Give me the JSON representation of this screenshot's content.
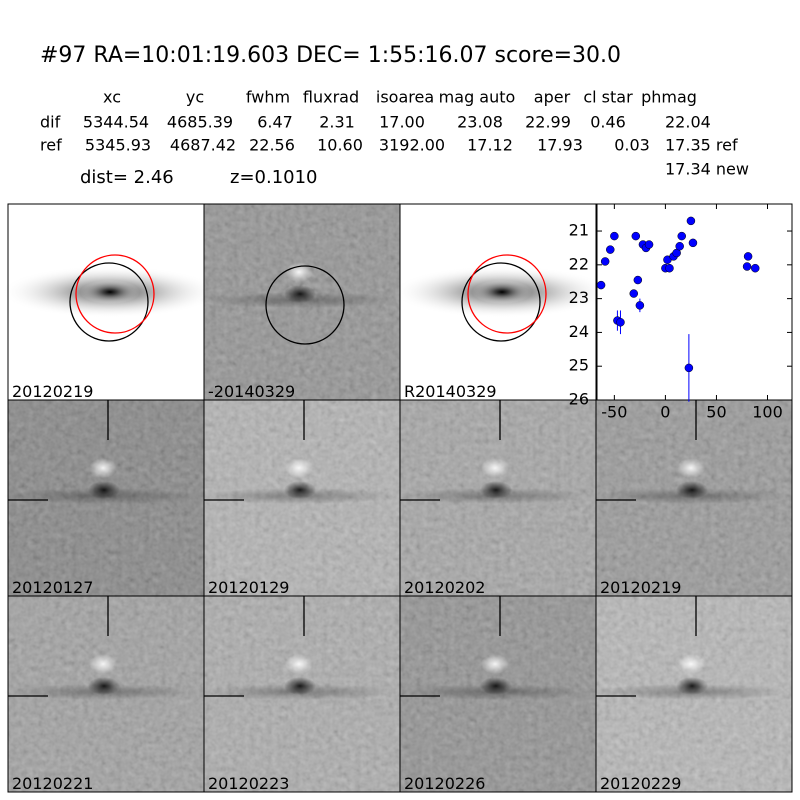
{
  "header": {
    "title": "#97   RA=10:01:19.603 DEC= 1:55:16.07      score=30.0"
  },
  "table": {
    "columns": [
      "xc",
      "yc",
      "fwhm",
      "fluxrad",
      "isoarea",
      "mag auto",
      "aper",
      "cl star",
      "phmag"
    ],
    "rows": [
      {
        "label": "dif",
        "values": [
          "5344.54",
          "4685.39",
          "6.47",
          "2.31",
          "17.00",
          "23.08",
          "22.99",
          "0.46",
          "22.04"
        ]
      },
      {
        "label": "ref",
        "values": [
          "5345.93",
          "4687.42",
          "22.56",
          "10.60",
          "3192.00",
          "17.12",
          "17.93",
          "0.03",
          "17.35 ref"
        ]
      }
    ],
    "extra": "17.34 new",
    "dist": "dist=  2.46",
    "z": "z=0.1010"
  },
  "panels": [
    {
      "label": "20120219",
      "label_color": "#000000"
    },
    {
      "label": "-20140329",
      "label_color": "#000000"
    },
    {
      "label": "R20140329",
      "label_color": "#000000"
    },
    {
      "label": "20120127",
      "label_color": "#000000"
    },
    {
      "label": "20120129",
      "label_color": "#000000"
    },
    {
      "label": "20120202",
      "label_color": "#000000"
    },
    {
      "label": "20120219",
      "label_color": "#ff0000"
    },
    {
      "label": "20120221",
      "label_color": "#000000"
    },
    {
      "label": "20120223",
      "label_color": "#000000"
    },
    {
      "label": "20120226",
      "label_color": "#000000"
    },
    {
      "label": "20120229",
      "label_color": "#000000"
    }
  ],
  "chart_data": {
    "type": "scatter",
    "color": "#0000ff",
    "x": [
      -63,
      -59,
      -54,
      -50,
      -47,
      -44,
      -31,
      -29,
      -27,
      -25,
      -22,
      -19,
      -16,
      0,
      2,
      4,
      8,
      11,
      14,
      16,
      23,
      25,
      27,
      81,
      80,
      88
    ],
    "values": [
      22.6,
      21.9,
      21.55,
      21.15,
      23.65,
      23.7,
      22.85,
      21.15,
      22.45,
      23.2,
      21.4,
      21.5,
      21.4,
      22.1,
      21.85,
      22.1,
      21.75,
      21.65,
      21.45,
      21.15,
      25.05,
      20.7,
      21.35,
      21.75,
      22.05,
      22.1
    ],
    "errors": [
      0.1,
      0.05,
      0.05,
      0.05,
      0.3,
      0.35,
      0.1,
      0.05,
      0.1,
      0.2,
      0.05,
      0.05,
      0.05,
      0.05,
      0.05,
      0.05,
      0.05,
      0.05,
      0.05,
      0.05,
      1.0,
      0.05,
      0.05,
      0.05,
      0.05,
      0.05
    ],
    "xlim": [
      -67,
      124
    ],
    "ylim": [
      26,
      20.2
    ],
    "xticks": [
      -50,
      0,
      50,
      100
    ],
    "yticks": [
      21,
      22,
      23,
      24,
      25,
      26
    ]
  }
}
